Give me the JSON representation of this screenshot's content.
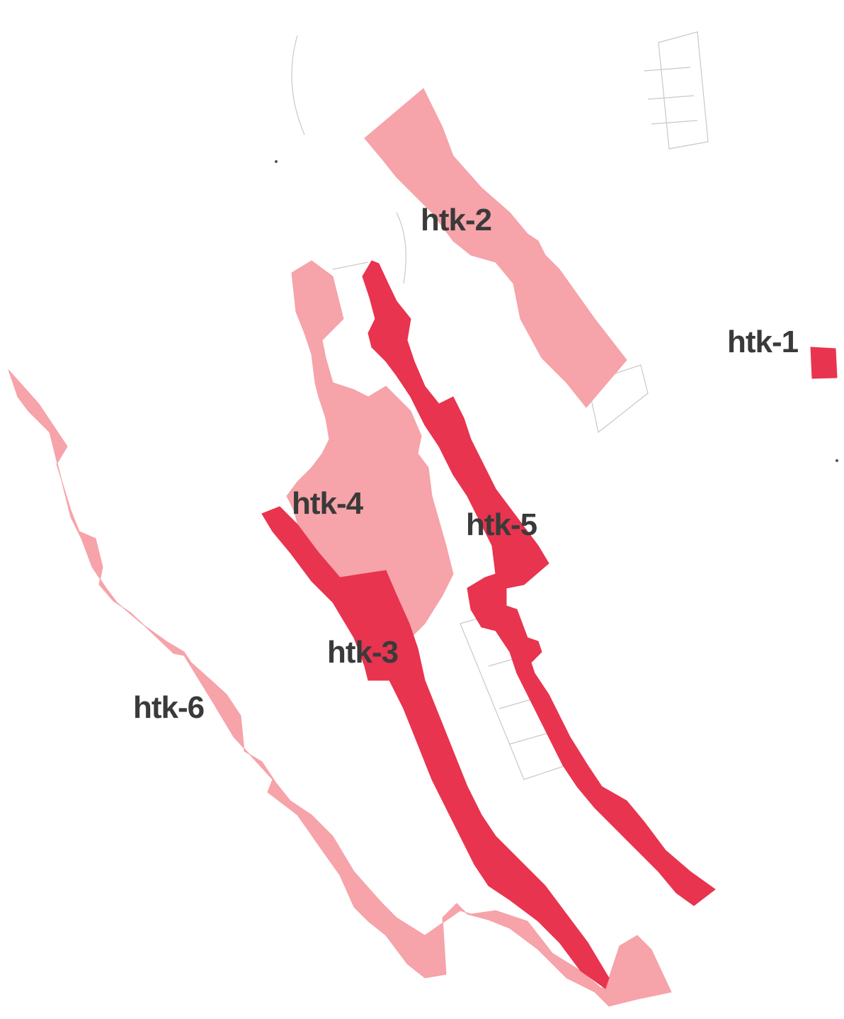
{
  "map": {
    "zones": [
      {
        "id": "htk-1",
        "label": "htk-1",
        "level": "dark"
      },
      {
        "id": "htk-2",
        "label": "htk-2",
        "level": "light"
      },
      {
        "id": "htk-3",
        "label": "htk-3",
        "level": "dark"
      },
      {
        "id": "htk-4",
        "label": "htk-4",
        "level": "light"
      },
      {
        "id": "htk-5",
        "label": "htk-5",
        "level": "dark"
      },
      {
        "id": "htk-6",
        "label": "htk-6",
        "level": "light"
      }
    ],
    "colors": {
      "light": "#f6a3a9",
      "dark": "#e8344f",
      "label": "#3a3a3a",
      "background": "#ffffff"
    }
  }
}
